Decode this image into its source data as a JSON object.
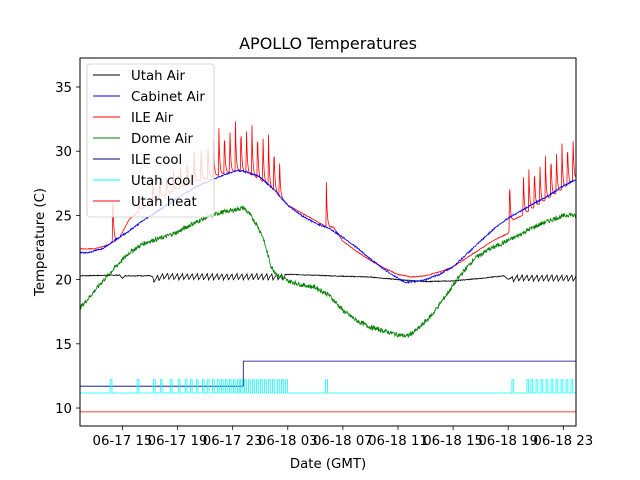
{
  "chart_data": {
    "type": "line",
    "title": "APOLLO Temperatures",
    "xlabel": "Date (GMT)",
    "ylabel": "Temperature (C)",
    "x_units": "hours since 06-17 00:00 GMT",
    "xlim": [
      11.92,
      47.92
    ],
    "ylim": [
      8.6,
      37.26
    ],
    "grid": false,
    "legend_position": "upper-left",
    "x_ticks": [
      {
        "value": 15,
        "label": "06-17 15"
      },
      {
        "value": 19,
        "label": "06-17 19"
      },
      {
        "value": 23,
        "label": "06-17 23"
      },
      {
        "value": 27,
        "label": "06-18 03"
      },
      {
        "value": 31,
        "label": "06-18 07"
      },
      {
        "value": 35,
        "label": "06-18 11"
      },
      {
        "value": 39,
        "label": "06-18 15"
      },
      {
        "value": 43,
        "label": "06-18 19"
      },
      {
        "value": 47,
        "label": "06-18 23"
      }
    ],
    "y_ticks": [
      {
        "value": 10,
        "label": "10"
      },
      {
        "value": 15,
        "label": "15"
      },
      {
        "value": 20,
        "label": "20"
      },
      {
        "value": 25,
        "label": "25"
      },
      {
        "value": 30,
        "label": "30"
      },
      {
        "value": 35,
        "label": "35"
      }
    ],
    "series": [
      {
        "name": "Utah Air",
        "color": "#000000",
        "kind": "oscillating",
        "x": [
          11.92,
          14.8,
          15.0,
          15.2,
          17.0,
          17.2,
          18.0,
          19.0,
          20.0,
          22.0,
          24.0,
          26.0,
          26.8,
          27.5,
          30.0,
          33.0,
          35.0,
          37.0,
          39.0,
          41.0,
          42.7,
          43.0,
          43.5,
          45.0,
          47.92
        ],
        "y": [
          20.3,
          20.35,
          20.1,
          20.3,
          20.3,
          20.2,
          20.5,
          20.45,
          20.45,
          20.45,
          20.45,
          20.45,
          20.4,
          20.4,
          20.3,
          20.2,
          20.0,
          19.85,
          19.9,
          20.1,
          20.3,
          20.0,
          20.35,
          20.35,
          20.35
        ],
        "oscillation": {
          "from": 17.2,
          "to": 26.8,
          "period_h": 0.36,
          "amplitude": 0.45
        },
        "oscillation2": {
          "from": 43.3,
          "to": 47.92,
          "period_h": 0.36,
          "amplitude": 0.45
        }
      },
      {
        "name": "Cabinet Air",
        "color": "#0000ff",
        "x": [
          11.92,
          12.5,
          13.5,
          14.5,
          15.5,
          16.5,
          17.5,
          18.5,
          19.5,
          20.5,
          21.5,
          22.5,
          23.3,
          24.0,
          25.0,
          26.0,
          27.0,
          28.0,
          29.0,
          30.0,
          31.0,
          32.0,
          33.0,
          34.0,
          35.0,
          35.5,
          36.0,
          37.0,
          38.0,
          39.0,
          40.0,
          41.0,
          42.0,
          43.0,
          44.0,
          45.0,
          46.0,
          47.0,
          47.92
        ],
        "y": [
          22.1,
          22.1,
          22.4,
          23.1,
          23.8,
          24.6,
          25.3,
          26.0,
          26.7,
          27.3,
          27.8,
          28.2,
          28.5,
          28.4,
          28.0,
          27.0,
          25.8,
          25.0,
          24.4,
          24.0,
          23.3,
          22.5,
          21.6,
          20.8,
          20.1,
          19.8,
          19.8,
          20.0,
          20.4,
          21.0,
          22.0,
          23.0,
          24.0,
          24.8,
          25.4,
          26.0,
          26.6,
          27.3,
          27.8
        ]
      },
      {
        "name": "ILE Air",
        "color": "#ff0000",
        "x": [
          11.92,
          13.0,
          14.0,
          14.8,
          15.5,
          16.5,
          17.5,
          18.5,
          19.5,
          20.5,
          21.5,
          22.5,
          23.5,
          24.5,
          25.5,
          26.0,
          26.5,
          27.0,
          28.0,
          29.0,
          29.8,
          30.3,
          31.0,
          32.0,
          33.0,
          34.0,
          35.0,
          36.0,
          37.0,
          38.0,
          39.0,
          40.0,
          41.0,
          42.0,
          43.0,
          43.3,
          44.0,
          45.0,
          46.0,
          47.0,
          47.92
        ],
        "y": [
          22.4,
          22.4,
          22.7,
          23.3,
          24.7,
          25.6,
          26.3,
          26.8,
          27.3,
          27.7,
          28.0,
          28.3,
          28.5,
          28.1,
          27.4,
          27.0,
          26.4,
          25.8,
          25.2,
          24.6,
          24.1,
          24.1,
          23.0,
          22.2,
          21.5,
          20.9,
          20.4,
          20.2,
          20.3,
          20.6,
          21.0,
          21.7,
          22.4,
          23.1,
          23.6,
          24.6,
          25.0,
          25.7,
          26.4,
          27.1,
          27.9
        ],
        "spikes": [
          {
            "x": 14.3,
            "peak": 27.1
          },
          {
            "x": 16.2,
            "peak": 25.9
          },
          {
            "x": 17.2,
            "peak": 27.8
          },
          {
            "x": 17.7,
            "peak": 28.1
          },
          {
            "x": 18.2,
            "peak": 28.3
          },
          {
            "x": 18.7,
            "peak": 28.5
          },
          {
            "x": 19.2,
            "peak": 29.0
          },
          {
            "x": 19.7,
            "peak": 29.5
          },
          {
            "x": 20.2,
            "peak": 30.0
          },
          {
            "x": 20.7,
            "peak": 30.5
          },
          {
            "x": 21.2,
            "peak": 31.0
          },
          {
            "x": 21.6,
            "peak": 31.4
          },
          {
            "x": 22.0,
            "peak": 31.8
          },
          {
            "x": 22.4,
            "peak": 31.8
          },
          {
            "x": 22.8,
            "peak": 32.0
          },
          {
            "x": 23.2,
            "peak": 32.3
          },
          {
            "x": 23.6,
            "peak": 32.2
          },
          {
            "x": 24.0,
            "peak": 32.1
          },
          {
            "x": 24.4,
            "peak": 32.0
          },
          {
            "x": 24.8,
            "peak": 31.9
          },
          {
            "x": 25.2,
            "peak": 31.6
          },
          {
            "x": 25.6,
            "peak": 31.3
          },
          {
            "x": 26.0,
            "peak": 30.6
          },
          {
            "x": 26.4,
            "peak": 29.5
          },
          {
            "x": 29.8,
            "peak": 27.6
          },
          {
            "x": 43.1,
            "peak": 28.2
          },
          {
            "x": 44.1,
            "peak": 28.5
          },
          {
            "x": 44.5,
            "peak": 28.6
          },
          {
            "x": 44.9,
            "peak": 29.0
          },
          {
            "x": 45.3,
            "peak": 29.3
          },
          {
            "x": 45.7,
            "peak": 29.6
          },
          {
            "x": 46.1,
            "peak": 30.0
          },
          {
            "x": 46.5,
            "peak": 30.3
          },
          {
            "x": 46.9,
            "peak": 30.6
          },
          {
            "x": 47.3,
            "peak": 30.9
          },
          {
            "x": 47.7,
            "peak": 31.3
          }
        ]
      },
      {
        "name": "Dome Air",
        "color": "#008000",
        "x": [
          11.92,
          12.5,
          13.5,
          14.5,
          15.5,
          16.5,
          17.0,
          18.0,
          19.0,
          20.0,
          21.0,
          22.0,
          23.0,
          23.8,
          24.3,
          24.8,
          25.2,
          25.8,
          26.3,
          27.0,
          28.0,
          29.0,
          30.0,
          31.0,
          32.0,
          33.0,
          34.0,
          35.0,
          35.7,
          36.5,
          37.5,
          38.5,
          39.5,
          40.5,
          41.5,
          42.5,
          43.5,
          44.5,
          45.5,
          46.5,
          47.5,
          47.92
        ],
        "y": [
          17.8,
          18.5,
          19.8,
          21.0,
          22.1,
          22.8,
          23.0,
          23.3,
          23.7,
          24.3,
          24.8,
          25.2,
          25.4,
          25.6,
          25.0,
          24.2,
          23.3,
          21.0,
          20.3,
          19.9,
          19.6,
          19.4,
          18.8,
          17.6,
          16.8,
          16.3,
          16.0,
          15.7,
          15.6,
          16.2,
          17.3,
          18.8,
          20.3,
          21.6,
          22.3,
          22.8,
          23.3,
          23.9,
          24.4,
          24.8,
          25.1,
          24.9
        ]
      },
      {
        "name": "ILE cool",
        "color": "#00007f",
        "x": [
          11.92,
          23.77,
          23.77,
          47.92
        ],
        "y": [
          11.7,
          11.7,
          13.65,
          13.65
        ]
      },
      {
        "name": "Utah cool",
        "color": "#00ffff",
        "kind": "pulses",
        "baseline": 11.17,
        "high": 12.2,
        "pulse_width_h": 0.13,
        "pulse_x": [
          14.11,
          16.07,
          17.24,
          17.75,
          18.47,
          19.05,
          19.56,
          19.93,
          20.36,
          20.8,
          21.16,
          21.53,
          21.89,
          22.18,
          22.47,
          22.76,
          23.05,
          23.35,
          23.56,
          23.85,
          24.15,
          24.44,
          24.73,
          25.02,
          25.31,
          25.6,
          25.89,
          26.25,
          26.55,
          26.84,
          29.75,
          43.27,
          44.36,
          44.65,
          45.02,
          45.38,
          45.75,
          46.11,
          46.47,
          46.84,
          47.2,
          47.56
        ]
      },
      {
        "name": "Utah heat",
        "color": "#ff0000",
        "x": [
          11.92,
          47.92
        ],
        "y": [
          9.7,
          9.7
        ]
      }
    ]
  }
}
